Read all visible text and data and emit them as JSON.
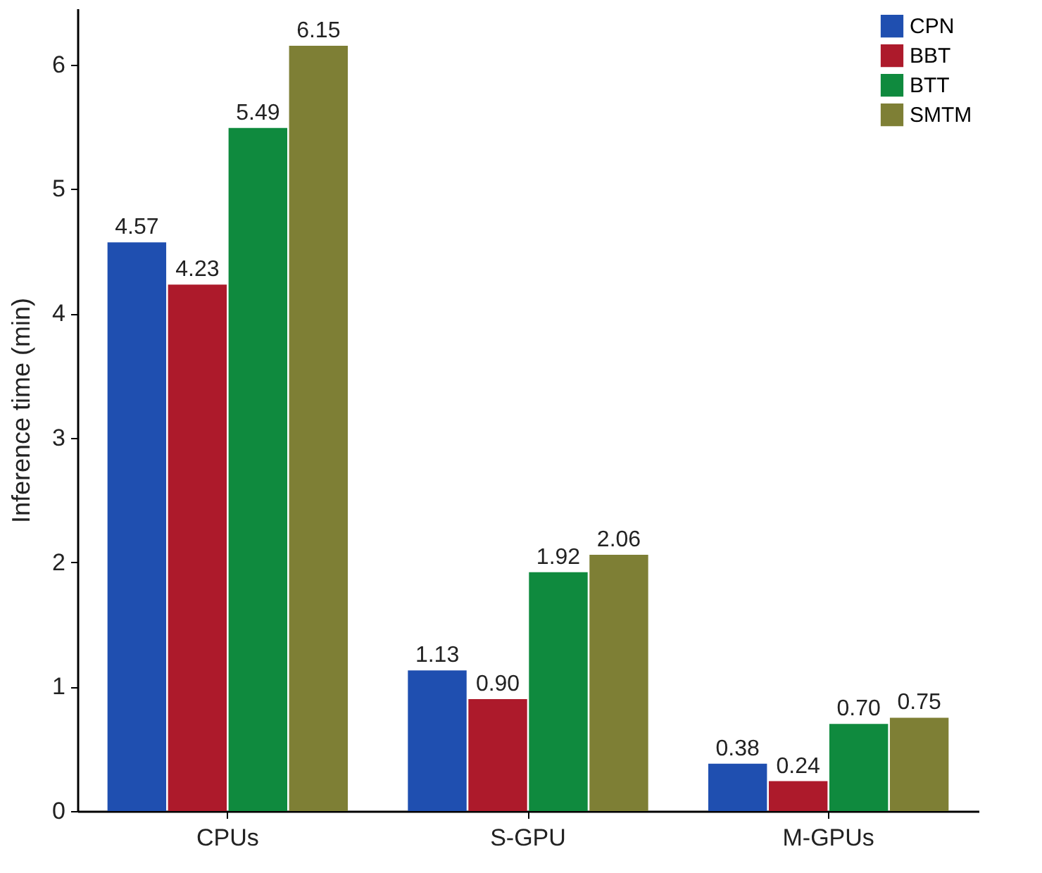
{
  "chart_data": {
    "type": "bar",
    "ylabel": "Inference time (min)",
    "categories": [
      "CPUs",
      "S-GPU",
      "M-GPUs"
    ],
    "series": [
      {
        "name": "CPN",
        "color": "#1f4fb0",
        "values": [
          4.57,
          1.13,
          0.38
        ],
        "value_labels": [
          "4.57",
          "1.13",
          "0.38"
        ]
      },
      {
        "name": "BBT",
        "color": "#ad1a2b",
        "values": [
          4.23,
          0.9,
          0.24
        ],
        "value_labels": [
          "4.23",
          "0.90",
          "0.24"
        ]
      },
      {
        "name": "BTT",
        "color": "#0f8a3e",
        "values": [
          5.49,
          1.92,
          0.7
        ],
        "value_labels": [
          "5.49",
          "1.92",
          "0.70"
        ]
      },
      {
        "name": "SMTM",
        "color": "#7e7f35",
        "values": [
          6.15,
          2.06,
          0.75
        ],
        "value_labels": [
          "6.15",
          "2.06",
          "0.75"
        ]
      }
    ],
    "ylim": [
      0,
      6.45
    ],
    "yticks": [
      0,
      1,
      2,
      3,
      4,
      5,
      6
    ],
    "grid": false,
    "legend": "top right"
  }
}
